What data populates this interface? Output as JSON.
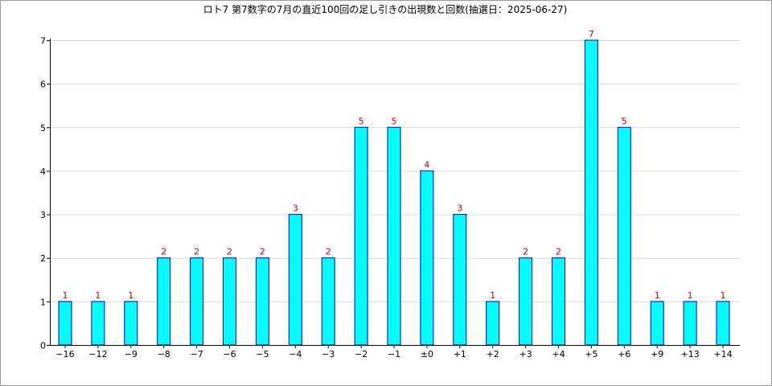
{
  "chart_data": {
    "type": "bar",
    "title": "ロト7 第7数字の7月の直近100回の足し引きの出現数と回数(抽選日：2025-06-27)",
    "xlabel": "",
    "ylabel": "",
    "categories": [
      "−16",
      "−12",
      "−9",
      "−8",
      "−7",
      "−6",
      "−5",
      "−4",
      "−3",
      "−2",
      "−1",
      "±0",
      "+1",
      "+2",
      "+3",
      "+4",
      "+5",
      "+6",
      "+9",
      "+13",
      "+14"
    ],
    "values": [
      1,
      1,
      1,
      2,
      2,
      2,
      2,
      3,
      2,
      5,
      5,
      4,
      3,
      1,
      2,
      2,
      7,
      5,
      1,
      1,
      1
    ],
    "ylim": [
      0,
      7
    ],
    "yticks": [
      0,
      1,
      2,
      3,
      4,
      5,
      6,
      7
    ],
    "grid": true,
    "legend": "none",
    "colors": {
      "bar_fill": "#00ffff",
      "bar_stroke": "#0000cc",
      "data_label": "#cc0000",
      "grid": "#d9d9d9",
      "axis": "#000000"
    }
  }
}
